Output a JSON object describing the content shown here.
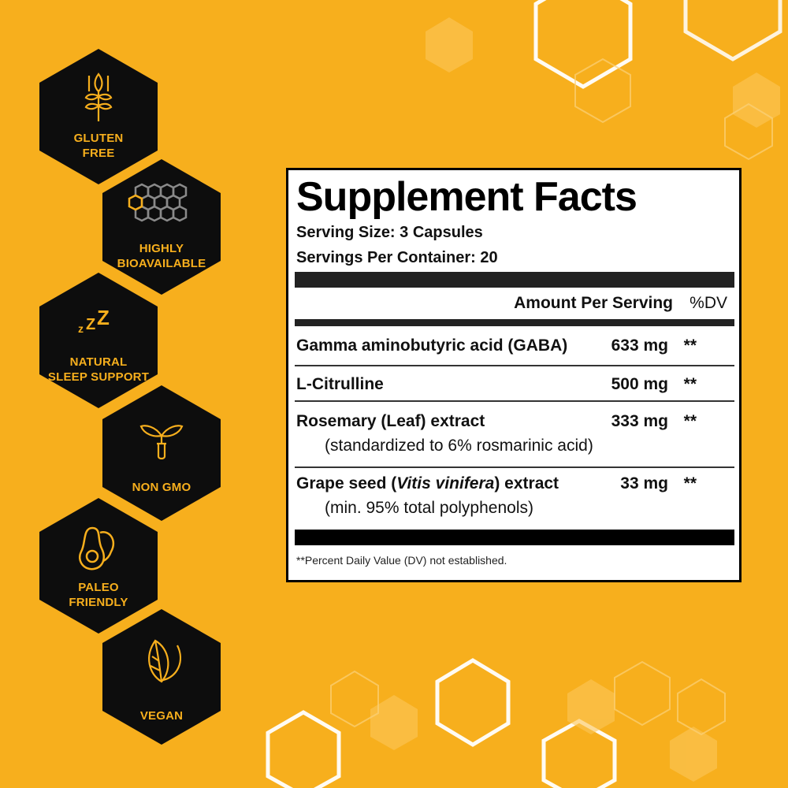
{
  "colors": {
    "background": "#F7AF1D",
    "badge": "#0D0D0D",
    "accent": "#F7AF1D",
    "panel": "#FFFFFF"
  },
  "badges": [
    {
      "icon": "wheat-icon",
      "line1": "GLUTEN",
      "line2": "FREE"
    },
    {
      "icon": "honeycomb-icon",
      "line1": "HIGHLY",
      "line2": "BIOAVAILABLE"
    },
    {
      "icon": "sleep-zzz-icon",
      "line1": "NATURAL",
      "line2": "SLEEP SUPPORT"
    },
    {
      "icon": "sprout-test-tube-icon",
      "line1": "NON GMO",
      "line2": ""
    },
    {
      "icon": "avocado-icon",
      "line1": "PALEO",
      "line2": "FRIENDLY"
    },
    {
      "icon": "leaf-icon",
      "line1": "VEGAN",
      "line2": ""
    }
  ],
  "facts": {
    "title": "Supplement Facts",
    "serving_size": "Serving Size: 3 Capsules",
    "servings_per_container": "Servings Per Container: 20",
    "amount_header": "Amount Per Serving",
    "dv_header": "%DV",
    "rows": [
      {
        "name": "Gamma aminobutyric acid (GABA)",
        "sub": "",
        "amount": "633 mg",
        "dv": "**"
      },
      {
        "name": "L-Citrulline",
        "sub": "",
        "amount": "500 mg",
        "dv": "**"
      },
      {
        "name": "Rosemary (Leaf) extract",
        "sub": "(standardized to 6% rosmarinic acid)",
        "amount": "333 mg",
        "dv": "**"
      },
      {
        "name_pre": "Grape seed (",
        "name_italic": "Vitis vinifera",
        "name_post": ") extract",
        "sub": "(min. 95% total polyphenols)",
        "amount": "33 mg",
        "dv": "**"
      }
    ],
    "footnote": "**Percent Daily Value (DV) not established."
  }
}
